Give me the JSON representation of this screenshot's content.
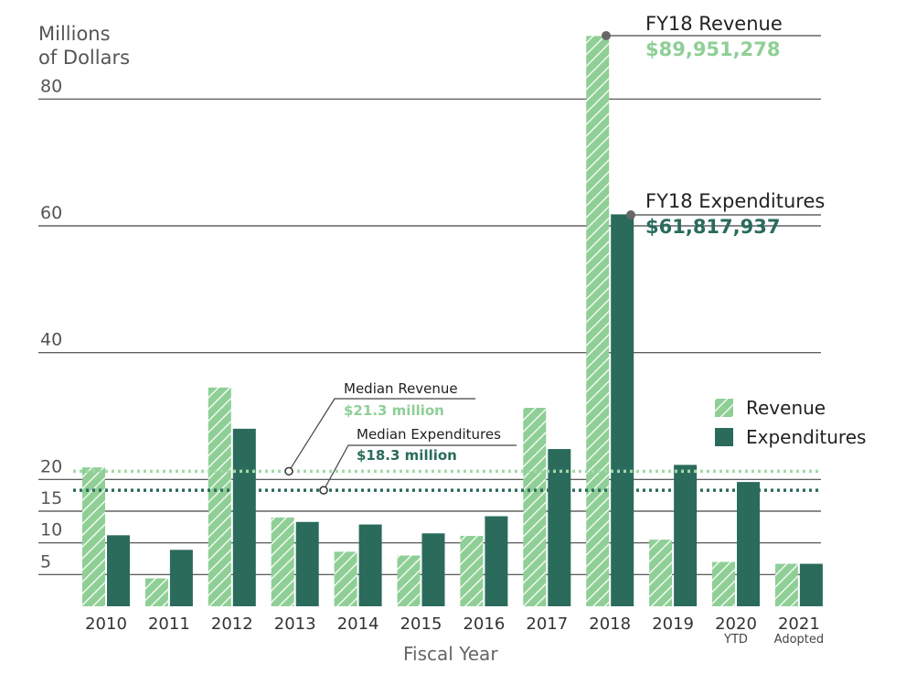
{
  "chart_data": {
    "type": "bar",
    "title": "",
    "ylabel_line1": "Millions",
    "ylabel_line2": "of Dollars",
    "xlabel": "Fiscal Year",
    "ylim": [
      0,
      90
    ],
    "yticks": [
      5,
      10,
      15,
      20,
      40,
      60,
      80
    ],
    "categories": [
      "2010",
      "2011",
      "2012",
      "2013",
      "2014",
      "2015",
      "2016",
      "2017",
      "2018",
      "2019",
      "2020",
      "2021"
    ],
    "category_sublabels": [
      "",
      "",
      "",
      "",
      "",
      "",
      "",
      "",
      "",
      "",
      "YTD",
      "Adopted"
    ],
    "series": [
      {
        "name": "Revenue",
        "color": "#8fcf96",
        "values": [
          21.9,
          4.4,
          34.5,
          14.0,
          8.6,
          8.0,
          11.1,
          31.3,
          89.95,
          10.5,
          7.0,
          6.7
        ]
      },
      {
        "name": "Expenditures",
        "color": "#2a6b5c",
        "values": [
          11.2,
          8.9,
          28.0,
          13.3,
          12.9,
          11.5,
          14.2,
          24.8,
          61.82,
          22.3,
          19.6,
          6.7
        ]
      }
    ],
    "median_revenue": {
      "value": 21.3,
      "title": "Median Revenue",
      "label": "$21.3 million"
    },
    "median_expenditures": {
      "value": 18.3,
      "title": "Median Expenditures",
      "label": "$18.3 million"
    },
    "annotations": {
      "revenue_title": "FY18 Revenue",
      "revenue_value": "$89,951,278",
      "expenditures_title": "FY18 Expenditures",
      "expenditures_value": "$61,817,937"
    },
    "legend": [
      "Revenue",
      "Expenditures"
    ],
    "colors": {
      "revenue": "#8fcf96",
      "revenue_text": "#8fcf96",
      "expenditures": "#2a6b5c",
      "median_rev_line": "#a5d9a9",
      "median_exp_line": "#2a6b5c"
    }
  }
}
